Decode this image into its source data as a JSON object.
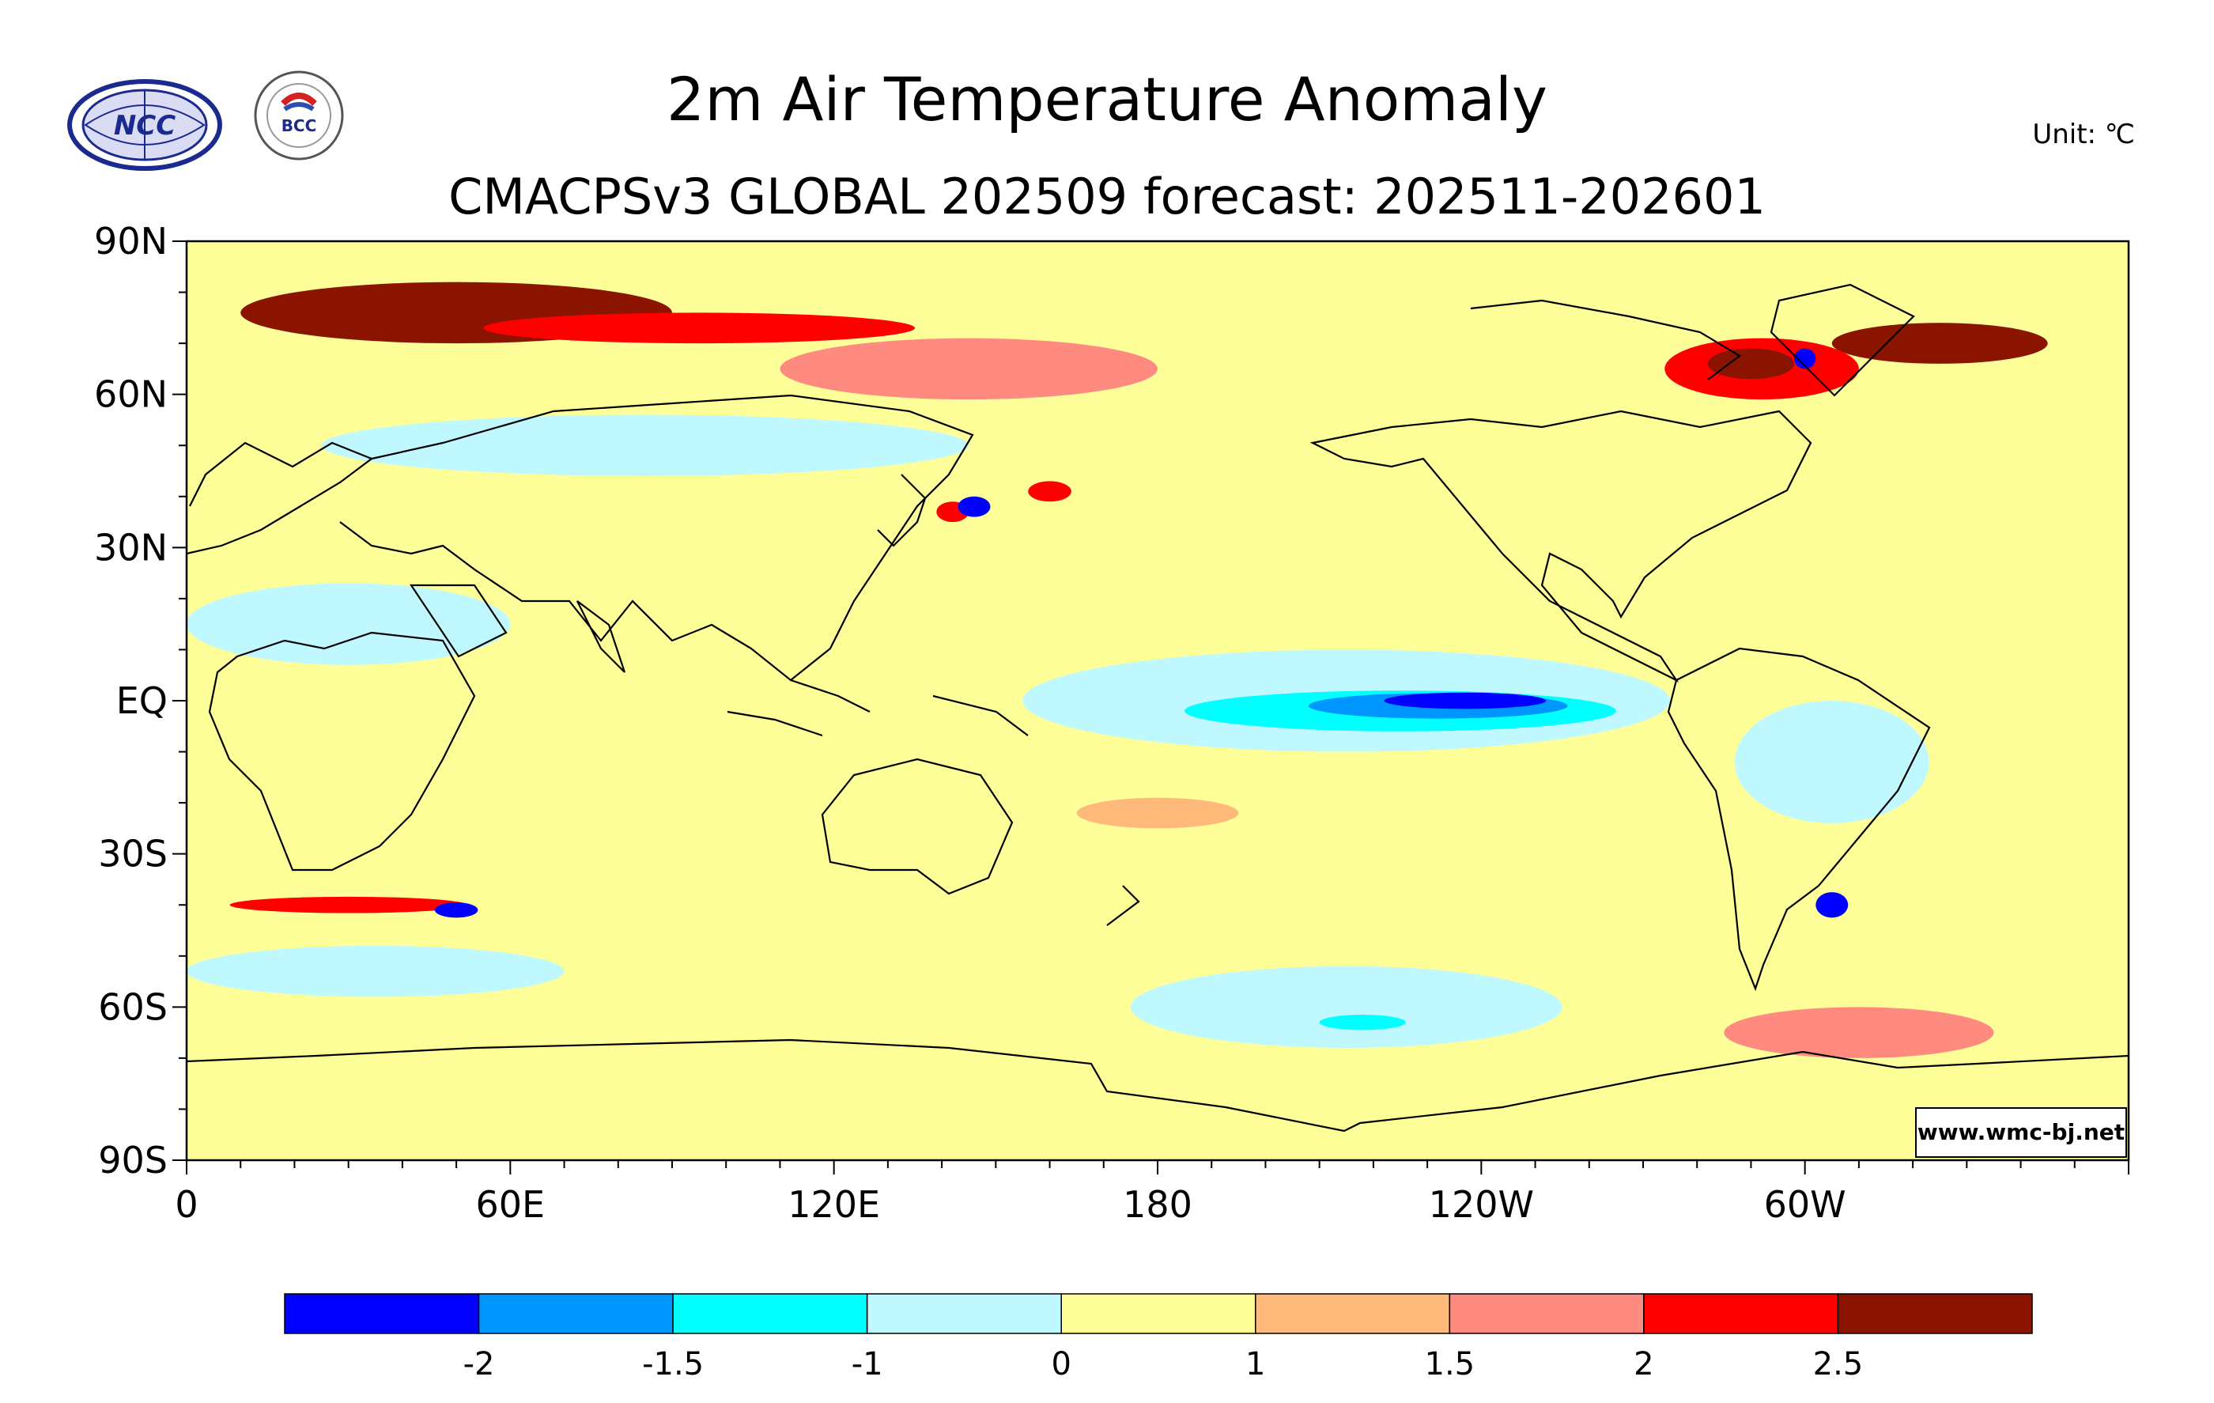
{
  "title": "2m Air Temperature Anomaly",
  "subtitle": "CMACPSv3 GLOBAL 202509 forecast: 202511-202601",
  "unit": "Unit: ℃",
  "watermark": "www.wmc-bj.net",
  "logos": [
    {
      "name": "NCC",
      "text": "NCC"
    },
    {
      "name": "BCC",
      "text": "BCC"
    }
  ],
  "lat_axis": {
    "labels": [
      "90N",
      "60N",
      "30N",
      "EQ",
      "30S",
      "60S",
      "90S"
    ],
    "values": [
      90,
      60,
      30,
      0,
      -30,
      -60,
      -90
    ]
  },
  "lon_axis": {
    "labels": [
      "0",
      "60E",
      "120E",
      "180",
      "120W",
      "60W"
    ],
    "values": [
      0,
      60,
      120,
      180,
      240,
      300
    ]
  },
  "colorbar": {
    "colors": [
      "#0000ff",
      "#0096ff",
      "#00ffff",
      "#bff9ff",
      "#ffff99",
      "#ffb97a",
      "#ff8a80",
      "#ff0000",
      "#8b1400"
    ],
    "labels": [
      "-2",
      "-1.5",
      "-1",
      "0",
      "1",
      "1.5",
      "2",
      "2.5"
    ]
  },
  "anomaly_regions": [
    {
      "level": 8,
      "lon": 50,
      "lat": 76,
      "rx": 40,
      "ry": 6
    },
    {
      "level": 7,
      "lon": 95,
      "lat": 73,
      "rx": 40,
      "ry": 3
    },
    {
      "level": 8,
      "lon": 325,
      "lat": 70,
      "rx": 20,
      "ry": 4
    },
    {
      "level": 7,
      "lon": 292,
      "lat": 65,
      "rx": 18,
      "ry": 6
    },
    {
      "level": 8,
      "lon": 290,
      "lat": 66,
      "rx": 8,
      "ry": 3
    },
    {
      "level": 6,
      "lon": 145,
      "lat": 65,
      "rx": 35,
      "ry": 6
    },
    {
      "level": 7,
      "lon": 142,
      "lat": 37,
      "rx": 3,
      "ry": 2
    },
    {
      "level": 7,
      "lon": 160,
      "lat": 41,
      "rx": 4,
      "ry": 2
    },
    {
      "level": 0,
      "lon": 146,
      "lat": 38,
      "rx": 3,
      "ry": 2
    },
    {
      "level": 0,
      "lon": 300,
      "lat": 67,
      "rx": 2,
      "ry": 2
    },
    {
      "level": 3,
      "lon": 85,
      "lat": 50,
      "rx": 60,
      "ry": 6
    },
    {
      "level": 3,
      "lon": 30,
      "lat": 15,
      "rx": 30,
      "ry": 8
    },
    {
      "level": 3,
      "lon": 215,
      "lat": 0,
      "rx": 60,
      "ry": 10
    },
    {
      "level": 2,
      "lon": 225,
      "lat": -2,
      "rx": 40,
      "ry": 4
    },
    {
      "level": 1,
      "lon": 232,
      "lat": -1,
      "rx": 24,
      "ry": 2.5
    },
    {
      "level": 0,
      "lon": 237,
      "lat": 0,
      "rx": 15,
      "ry": 1.6
    },
    {
      "level": 3,
      "lon": 305,
      "lat": -12,
      "rx": 18,
      "ry": 12
    },
    {
      "level": 3,
      "lon": 215,
      "lat": -60,
      "rx": 40,
      "ry": 8
    },
    {
      "level": 2,
      "lon": 218,
      "lat": -63,
      "rx": 8,
      "ry": 1.5
    },
    {
      "level": 3,
      "lon": 35,
      "lat": -53,
      "rx": 35,
      "ry": 5
    },
    {
      "level": 7,
      "lon": 30,
      "lat": -40,
      "rx": 22,
      "ry": 1.6
    },
    {
      "level": 0,
      "lon": 50,
      "lat": -41,
      "rx": 4,
      "ry": 1.5
    },
    {
      "level": 0,
      "lon": 305,
      "lat": -40,
      "rx": 3,
      "ry": 2.5
    },
    {
      "level": 6,
      "lon": 310,
      "lat": -65,
      "rx": 25,
      "ry": 5
    },
    {
      "level": 5,
      "lon": 180,
      "lat": -22,
      "rx": 15,
      "ry": 3
    }
  ]
}
